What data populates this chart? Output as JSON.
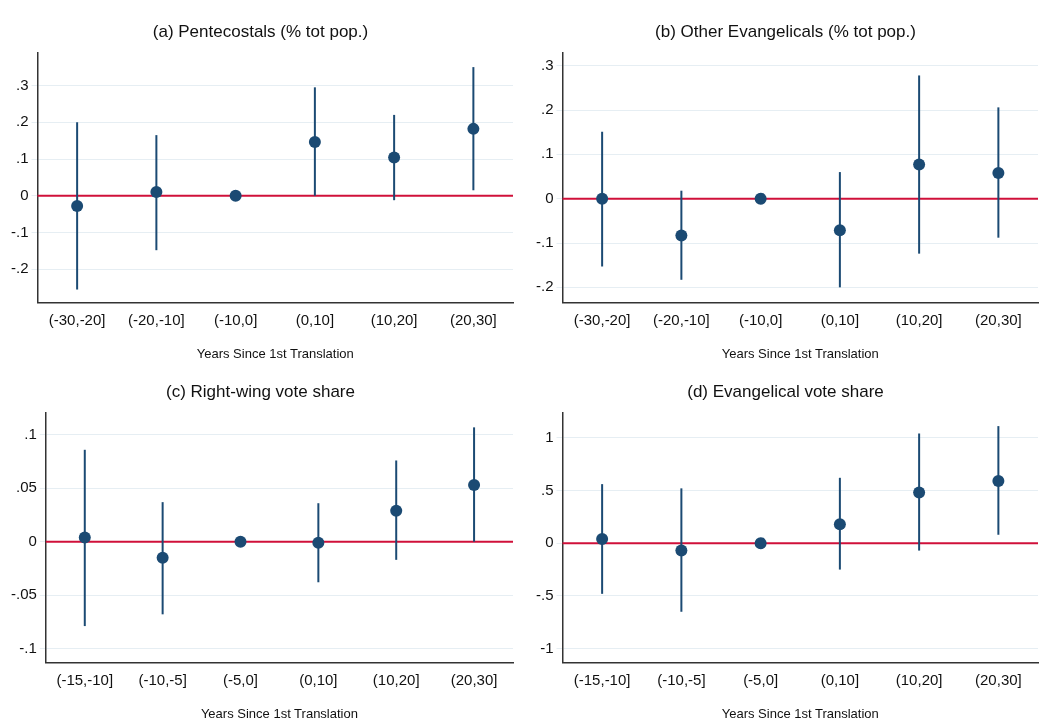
{
  "chart_data": [
    {
      "type": "scatter",
      "title": "(a) Pentecostals (% tot pop.)",
      "xlabel": "Years Since 1st Translation",
      "categories": [
        "(-30,-20]",
        "(-20,-10]",
        "(-10,0]",
        "(0,10]",
        "(10,20]",
        "(20,30]"
      ],
      "series": [
        {
          "color": "#1b4a73",
          "values": [
            -0.028,
            0.01,
            0,
            0.146,
            0.104,
            0.182
          ],
          "errors": [
            [
              -0.255,
              0.2
            ],
            [
              -0.148,
              0.165
            ],
            null,
            [
              0.0,
              0.295
            ],
            [
              -0.012,
              0.22
            ],
            [
              0.015,
              0.35
            ]
          ]
        }
      ],
      "ylim": [
        -0.29,
        0.39
      ],
      "yticks": [
        {
          "value": -0.2,
          "label": "-.2"
        },
        {
          "value": -0.1,
          "label": "-.1"
        },
        0,
        {
          "value": 0.1,
          "label": ".1"
        },
        {
          "value": 0.2,
          "label": ".2"
        },
        {
          "value": 0.3,
          "label": ".3"
        }
      ],
      "grid": "y",
      "marker": "circle",
      "ref_lines": [
        {
          "axis": "y",
          "value": 0,
          "color": "#d0103a"
        }
      ]
    },
    {
      "type": "scatter",
      "title": "(b) Other Evangelicals (% tot pop.)",
      "xlabel": "Years Since 1st Translation",
      "categories": [
        "(-30,-20]",
        "(-20,-10]",
        "(-10,0]",
        "(0,10]",
        "(10,20]",
        "(20,30]"
      ],
      "series": [
        {
          "color": "#1b4a73",
          "values": [
            0,
            -0.083,
            0,
            -0.071,
            0.077,
            0.058
          ],
          "errors": [
            [
              -0.153,
              0.151
            ],
            [
              -0.183,
              0.018
            ],
            null,
            [
              -0.2,
              0.06
            ],
            [
              -0.124,
              0.278
            ],
            [
              -0.088,
              0.206
            ]
          ]
        }
      ],
      "ylim": [
        -0.234,
        0.33
      ],
      "yticks": [
        {
          "value": -0.2,
          "label": "-.2"
        },
        {
          "value": -0.1,
          "label": "-.1"
        },
        0,
        {
          "value": 0.1,
          "label": ".1"
        },
        {
          "value": 0.2,
          "label": ".2"
        },
        {
          "value": 0.3,
          "label": ".3"
        }
      ],
      "grid": "y",
      "marker": "circle",
      "ref_lines": [
        {
          "axis": "y",
          "value": 0,
          "color": "#d0103a"
        }
      ]
    },
    {
      "type": "scatter",
      "title": "(c) Right-wing vote share",
      "xlabel": "Years Since 1st Translation",
      "categories": [
        "(-15,-10]",
        "(-10,-5]",
        "(-5,0]",
        "(0,10]",
        "(10,20]",
        "(20,30]"
      ],
      "series": [
        {
          "color": "#1b4a73",
          "values": [
            0.004,
            -0.015,
            0,
            -0.001,
            0.029,
            0.053
          ],
          "errors": [
            [
              -0.079,
              0.086
            ],
            [
              -0.068,
              0.037
            ],
            null,
            [
              -0.038,
              0.036
            ],
            [
              -0.017,
              0.076
            ],
            [
              0.0,
              0.107
            ]
          ]
        }
      ],
      "ylim": [
        -0.113,
        0.121
      ],
      "yticks": [
        {
          "value": -0.1,
          "label": "-.1"
        },
        {
          "value": -0.05,
          "label": "-.05"
        },
        0,
        {
          "value": 0.05,
          "label": ".05"
        },
        {
          "value": 0.1,
          "label": ".1"
        }
      ],
      "grid": "y",
      "marker": "circle",
      "ref_lines": [
        {
          "axis": "y",
          "value": 0,
          "color": "#d0103a"
        }
      ]
    },
    {
      "type": "scatter",
      "title": "(d) Evangelical vote share",
      "xlabel": "Years Since 1st Translation",
      "categories": [
        "(-15,-10]",
        "(-10,-5]",
        "(-5,0]",
        "(0,10]",
        "(10,20]",
        "(20,30]"
      ],
      "series": [
        {
          "color": "#1b4a73",
          "values": [
            0.04,
            -0.07,
            0,
            0.18,
            0.48,
            0.59
          ],
          "errors": [
            [
              -0.48,
              0.56
            ],
            [
              -0.65,
              0.52
            ],
            null,
            [
              -0.25,
              0.62
            ],
            [
              -0.07,
              1.04
            ],
            [
              0.08,
              1.11
            ]
          ]
        }
      ],
      "ylim": [
        -1.13,
        1.24
      ],
      "yticks": [
        -1,
        {
          "value": -0.5,
          "label": "-.5"
        },
        0,
        {
          "value": 0.5,
          "label": ".5"
        },
        1
      ],
      "grid": "y",
      "marker": "circle",
      "ref_lines": [
        {
          "axis": "y",
          "value": 0,
          "color": "#d0103a"
        }
      ]
    }
  ]
}
